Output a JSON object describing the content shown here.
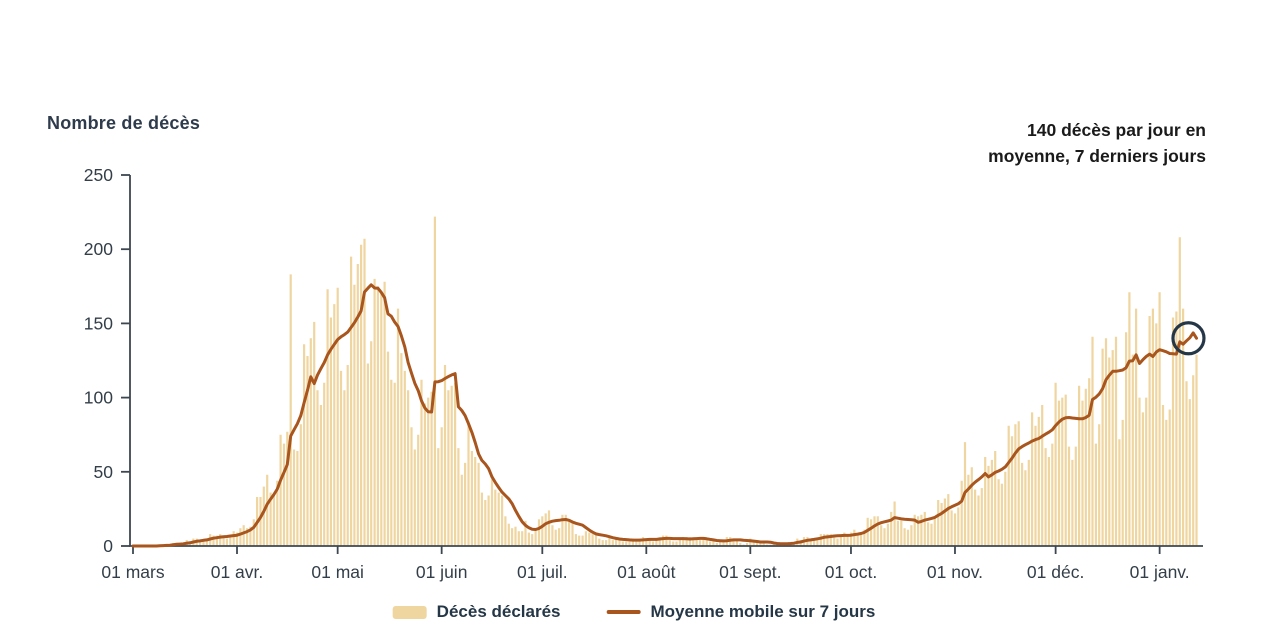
{
  "title": "Nombre de décès",
  "annotation": {
    "line1": "140 décès par jour en",
    "line2": "moyenne, 7 derniers jours"
  },
  "legend": {
    "bars_label": "Décès déclarés",
    "line_label": "Moyenne mobile sur 7 jours"
  },
  "colors": {
    "bar": "#efd5a0",
    "line": "#a8551e",
    "axis": "#3d4751",
    "tick_label": "#333e48",
    "title_text": "#2e3b4c",
    "annotation_text": "#1a1a1a",
    "legend_text": "#253746",
    "circle": "#253746"
  },
  "chart_data": {
    "type": "bar",
    "title": "Nombre de décès",
    "ylabel": "Nombre de décès",
    "xlabel": "",
    "ylim": [
      0,
      250
    ],
    "y_ticks": [
      0,
      50,
      100,
      150,
      200,
      250
    ],
    "x_tick_labels": [
      "01 mars",
      "01 avr.",
      "01 mai",
      "01 juin",
      "01 juil.",
      "01 août",
      "01 sept.",
      "01 oct.",
      "01 nov.",
      "01 déc.",
      "01 janv."
    ],
    "x_tick_day_index": [
      0,
      31,
      61,
      92,
      122,
      153,
      184,
      214,
      245,
      275,
      306
    ],
    "grid": false,
    "legend_position": "bottom-center",
    "series": [
      {
        "name": "Décès déclarés",
        "type": "bar",
        "values": [
          0,
          0,
          0,
          0,
          0,
          0,
          0,
          0,
          1,
          1,
          1,
          1,
          2,
          2,
          1,
          2,
          4,
          3,
          5,
          5,
          4,
          4,
          4,
          8,
          7,
          7,
          8,
          6,
          5,
          6,
          10,
          9,
          12,
          14,
          12,
          13,
          18,
          33,
          33,
          40,
          48,
          36,
          35,
          44,
          75,
          69,
          77,
          183,
          65,
          64,
          82,
          136,
          128,
          140,
          151,
          105,
          95,
          110,
          173,
          154,
          163,
          174,
          118,
          105,
          122,
          195,
          176,
          190,
          203,
          207,
          123,
          138,
          180,
          175,
          170,
          178,
          131,
          112,
          110,
          160,
          130,
          118,
          105,
          80,
          65,
          75,
          112,
          96,
          100,
          104,
          222,
          66,
          80,
          122,
          105,
          108,
          110,
          66,
          48,
          56,
          84,
          64,
          60,
          56,
          36,
          31,
          34,
          45,
          38,
          36,
          34,
          20,
          15,
          12,
          13,
          10,
          10,
          17,
          9,
          8,
          11,
          18,
          20,
          22,
          24,
          14,
          11,
          12,
          21,
          21,
          18,
          16,
          8,
          7,
          7,
          10,
          9,
          8,
          8,
          5,
          4,
          4,
          6,
          4,
          5,
          5,
          3,
          3,
          3,
          5,
          4,
          5,
          6,
          4,
          4,
          3,
          5,
          6,
          7,
          7,
          4,
          3,
          3,
          5,
          6,
          6,
          6,
          5,
          4,
          4,
          5,
          4,
          3,
          4,
          2,
          3,
          3,
          6,
          6,
          5,
          4,
          2,
          1,
          2,
          5,
          4,
          3,
          2,
          2,
          1,
          1,
          1,
          2,
          2,
          2,
          2,
          2,
          2,
          5,
          4,
          6,
          6,
          4,
          4,
          5,
          8,
          8,
          8,
          8,
          6,
          5,
          6,
          9,
          8,
          9,
          11,
          8,
          8,
          11,
          19,
          18,
          20,
          20,
          14,
          12,
          15,
          23,
          30,
          17,
          17,
          12,
          11,
          14,
          21,
          20,
          21,
          23,
          16,
          15,
          19,
          31,
          29,
          32,
          35,
          24,
          22,
          26,
          44,
          70,
          48,
          53,
          38,
          34,
          39,
          60,
          54,
          58,
          64,
          45,
          42,
          50,
          81,
          74,
          82,
          84,
          56,
          51,
          58,
          90,
          81,
          87,
          95,
          66,
          60,
          69,
          110,
          98,
          100,
          102,
          67,
          58,
          67,
          108,
          98,
          106,
          113,
          141,
          69,
          82,
          133,
          140,
          127,
          132,
          141,
          72,
          85,
          144,
          171,
          129,
          160,
          100,
          90,
          100,
          155,
          160,
          150,
          171,
          95,
          85,
          92,
          154,
          158,
          208,
          160,
          111,
          99,
          115,
          129
        ]
      },
      {
        "name": "Moyenne mobile sur 7 jours",
        "type": "line",
        "derived": "trailing 7-day mean of 'Décès déclarés'",
        "last_value": 140
      }
    ],
    "highlight_circle": {
      "day_index": 314,
      "value": 140
    }
  }
}
